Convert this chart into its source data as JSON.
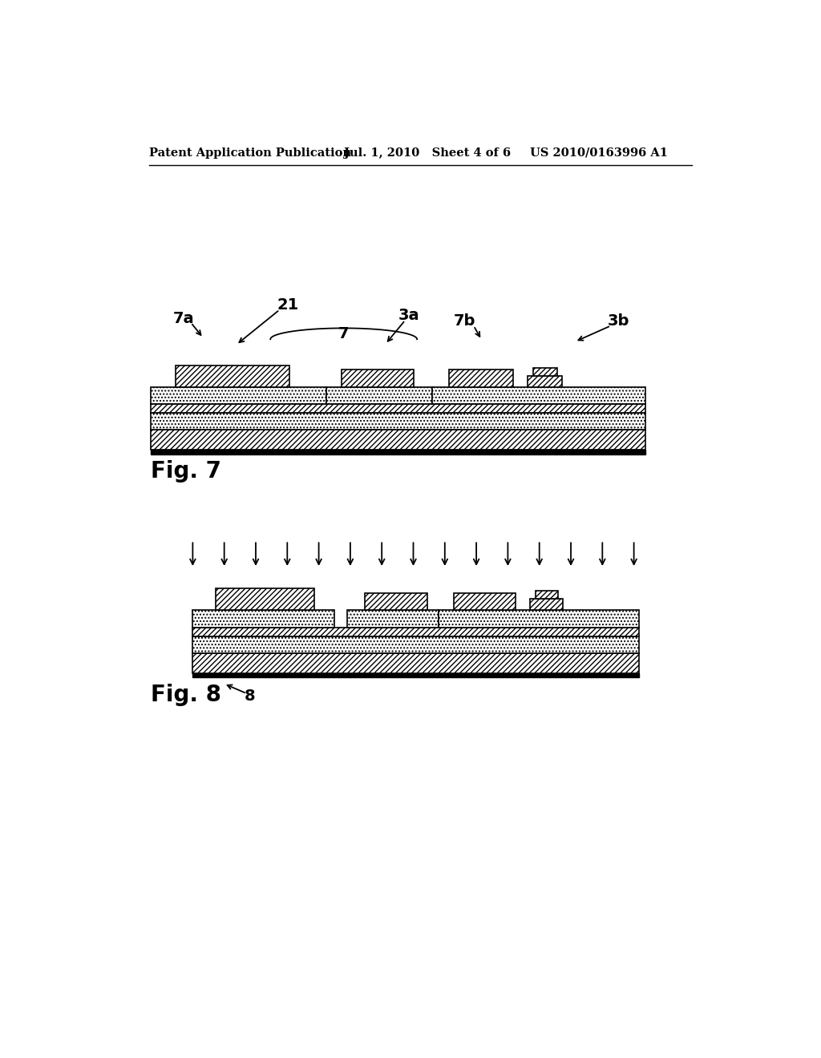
{
  "header_left": "Patent Application Publication",
  "header_mid": "Jul. 1, 2010   Sheet 4 of 6",
  "header_right": "US 2010/0163996 A1",
  "fig7_label": "Fig. 7",
  "fig8_label": "Fig. 8",
  "background_color": "#ffffff"
}
